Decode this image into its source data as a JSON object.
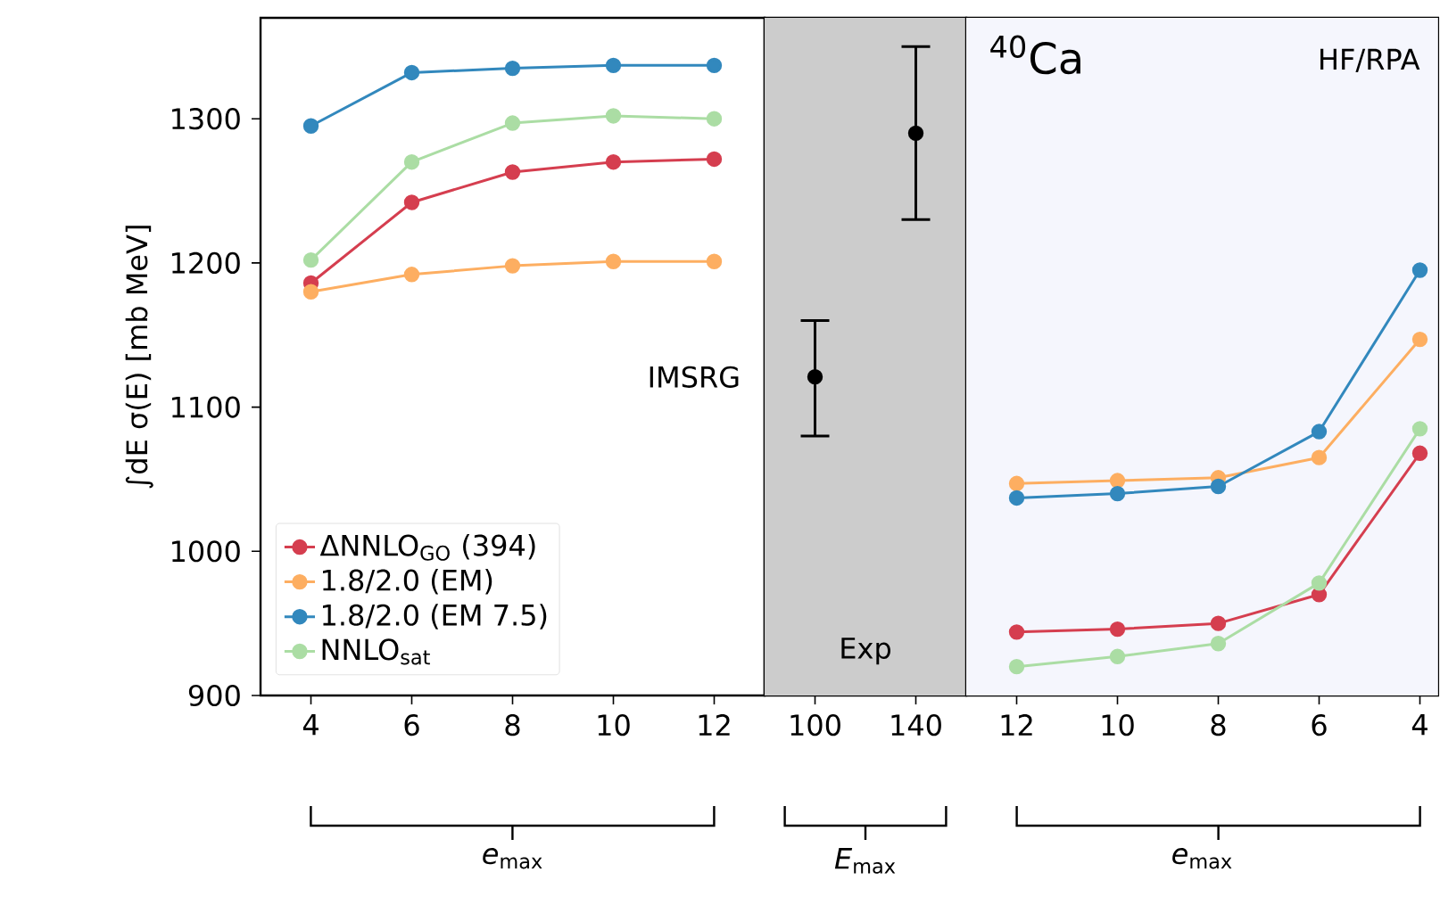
{
  "chart_data": [
    {
      "type": "line",
      "categories": [
        "4",
        "6",
        "8",
        "10",
        "12"
      ],
      "xlabel": "*e*$_{max}$",
      "ylabel": "∫dE σ(E)   [mb MeV]",
      "ylim": [
        900,
        1370
      ],
      "yticks": [
        900,
        1000,
        1100,
        1200,
        1300
      ],
      "marker": "circle",
      "legend": "bottom left",
      "annotations": [
        "IMSRG"
      ],
      "series": [
        {
          "name": "ΔNNLO$_{GO}$ (394)",
          "color": "#d53e4f",
          "values": [
            1186,
            1242,
            1263,
            1270,
            1272
          ]
        },
        {
          "name": "1.8/2.0 (EM)",
          "color": "#fdae61",
          "values": [
            1180,
            1192,
            1198,
            1201,
            1201
          ]
        },
        {
          "name": "1.8/2.0 (EM 7.5)",
          "color": "#3288bd",
          "values": [
            1295,
            1332,
            1335,
            1337,
            1337
          ]
        },
        {
          "name": "NNLO$_{sat}$",
          "color": "#abdda4",
          "values": [
            1202,
            1270,
            1297,
            1302,
            1300
          ]
        }
      ]
    },
    {
      "type": "scatter",
      "categories": [
        "100",
        "140"
      ],
      "xlabel": "*E*$_{max}$",
      "ylim": [
        900,
        1370
      ],
      "yticks": [
        900,
        1000,
        1100,
        1200,
        1300
      ],
      "tick_labels": "x",
      "marker": "circle",
      "annotations": [
        "Exp"
      ],
      "bands": [
        {
          "axis": "x",
          "from": "100",
          "to": "140",
          "color": "#cccccc"
        }
      ],
      "series": [
        {
          "color": "#000000",
          "values": [
            1121,
            1290
          ],
          "errors": [
            [
              1080,
              1160
            ],
            [
              1230,
              1350
            ]
          ]
        }
      ]
    },
    {
      "type": "line",
      "categories": [
        "12",
        "10",
        "8",
        "6",
        "4"
      ],
      "xlabel": "*e*$_{max}$",
      "ylim": [
        900,
        1370
      ],
      "yticks": [
        900,
        1000,
        1100,
        1200,
        1300
      ],
      "tick_labels": "x",
      "marker": "circle",
      "annotations": [
        "$^{40}$Ca",
        "HF/RPA"
      ],
      "bands": [
        {
          "axis": "x",
          "from": "12",
          "to": "4",
          "color": "#f5f6fd"
        }
      ],
      "series": [
        {
          "color": "#d53e4f",
          "values": [
            944,
            946,
            950,
            970,
            1068
          ]
        },
        {
          "color": "#fdae61",
          "values": [
            1047,
            1049,
            1051,
            1065,
            1147
          ]
        },
        {
          "color": "#3288bd",
          "values": [
            1037,
            1040,
            1045,
            1083,
            1195
          ]
        },
        {
          "color": "#abdda4",
          "values": [
            920,
            927,
            936,
            978,
            1085
          ]
        }
      ]
    }
  ]
}
